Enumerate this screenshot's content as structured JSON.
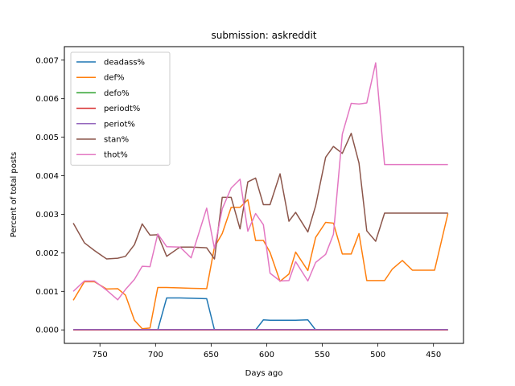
{
  "chart_data": {
    "type": "line",
    "title": "submission: askreddit",
    "xlabel": "Days ago",
    "ylabel": "Percent of total posts",
    "xlim": [
      782,
      423
    ],
    "ylim": [
      -0.00035,
      0.00735
    ],
    "x_inverted": true,
    "xticks": [
      750,
      700,
      650,
      600,
      550,
      500,
      450
    ],
    "yticks": [
      0.0,
      0.001,
      0.002,
      0.003,
      0.004,
      0.005,
      0.006,
      0.007
    ],
    "ytick_labels": [
      "0.000",
      "0.001",
      "0.002",
      "0.003",
      "0.004",
      "0.005",
      "0.006",
      "0.007"
    ],
    "grid": false,
    "legend_position": "upper-left",
    "x": [
      774,
      764,
      755,
      744,
      734,
      727,
      719,
      712,
      705,
      698,
      690,
      678,
      668,
      654,
      647,
      640,
      632,
      624,
      617,
      610,
      603,
      597,
      588,
      580,
      574,
      563,
      556,
      547,
      540,
      532,
      524,
      517,
      510,
      502,
      494,
      487,
      478,
      469,
      457,
      449,
      437
    ],
    "series": [
      {
        "name": "deadass%",
        "color": "#1f77b4",
        "values": [
          0,
          0,
          0,
          0,
          0,
          0,
          0,
          0,
          0,
          0,
          0.00083,
          0.00083,
          0.00082,
          0.00081,
          0,
          0,
          0,
          0,
          0,
          0,
          0.00026,
          0.00025,
          0.00025,
          0.00025,
          0.00025,
          0.00026,
          0,
          0,
          0,
          0,
          0,
          0,
          0,
          0,
          0,
          0,
          0,
          0,
          0,
          0,
          0
        ]
      },
      {
        "name": "def%",
        "color": "#ff7f0e",
        "values": [
          0.00077,
          0.00125,
          0.00125,
          0.00106,
          0.00107,
          0.0009,
          0.00025,
          3e-05,
          5e-05,
          0.0011,
          0.0011,
          0.00109,
          0.00108,
          0.00107,
          0.00215,
          0.0025,
          0.00318,
          0.00318,
          0.00338,
          0.00232,
          0.00232,
          0.00201,
          0.00126,
          0.00145,
          0.00202,
          0.00154,
          0.0024,
          0.00279,
          0.00277,
          0.00197,
          0.00197,
          0.0025,
          0.00128,
          0.00128,
          0.00128,
          0.00158,
          0.0018,
          0.00155,
          0.00155,
          0.00155,
          0.00302
        ]
      },
      {
        "name": "defo%",
        "color": "#2ca02c",
        "values": [
          0,
          0,
          0,
          0,
          0,
          0,
          0,
          0,
          0,
          0,
          0,
          0,
          0,
          0,
          0,
          0,
          0,
          0,
          0,
          0,
          0,
          0,
          0,
          0,
          0,
          0,
          0,
          0,
          0,
          0,
          0,
          0,
          0,
          0,
          0,
          0,
          0,
          0,
          0,
          0,
          0
        ]
      },
      {
        "name": "periodt%",
        "color": "#d62728",
        "values": [
          0,
          0,
          0,
          0,
          0,
          0,
          0,
          0,
          0,
          0,
          0,
          0,
          0,
          0,
          0,
          0,
          0,
          0,
          0,
          0,
          0,
          0,
          0,
          0,
          0,
          0,
          0,
          0,
          0,
          0,
          0,
          0,
          0,
          0,
          0,
          0,
          0,
          0,
          0,
          0,
          0
        ]
      },
      {
        "name": "periot%",
        "color": "#9467bd",
        "values": [
          1e-05,
          1e-05,
          1e-05,
          1e-05,
          1e-05,
          1e-05,
          1e-05,
          1e-05,
          1e-05,
          1e-05,
          1e-05,
          1e-05,
          1e-05,
          1e-05,
          1e-05,
          1e-05,
          1e-05,
          1e-05,
          1e-05,
          1e-05,
          1e-05,
          1e-05,
          1e-05,
          1e-05,
          1e-05,
          1e-05,
          1e-05,
          1e-05,
          1e-05,
          1e-05,
          1e-05,
          1e-05,
          1e-05,
          1e-05,
          1e-05,
          1e-05,
          1e-05,
          1e-05,
          1e-05,
          1e-05,
          1e-05
        ]
      },
      {
        "name": "stan%",
        "color": "#8c564b",
        "values": [
          0.00277,
          0.00226,
          0.00206,
          0.00184,
          0.00186,
          0.00191,
          0.00221,
          0.00275,
          0.00246,
          0.00247,
          0.00191,
          0.00215,
          0.00215,
          0.00213,
          0.00184,
          0.00344,
          0.00344,
          0.00262,
          0.00384,
          0.00394,
          0.00325,
          0.00325,
          0.00405,
          0.00282,
          0.00305,
          0.00254,
          0.00322,
          0.00448,
          0.00476,
          0.00458,
          0.0051,
          0.00433,
          0.00257,
          0.0023,
          0.00303,
          0.00303,
          0.00303,
          0.00303,
          0.00303,
          0.00303,
          0.00303
        ]
      },
      {
        "name": "thot%",
        "color": "#e377c2",
        "values": [
          0.001,
          0.00127,
          0.00127,
          0.00103,
          0.00078,
          0.00105,
          0.00131,
          0.00165,
          0.00164,
          0.00249,
          0.00216,
          0.00215,
          0.00187,
          0.00316,
          0.00211,
          0.00314,
          0.00368,
          0.00391,
          0.00256,
          0.00302,
          0.00273,
          0.00147,
          0.00127,
          0.00128,
          0.00177,
          0.00127,
          0.00175,
          0.00196,
          0.00248,
          0.00508,
          0.00588,
          0.00586,
          0.00589,
          0.00693,
          0.00429,
          0.00429,
          0.00429,
          0.00429,
          0.00429,
          0.00429,
          0.00429
        ]
      }
    ]
  }
}
